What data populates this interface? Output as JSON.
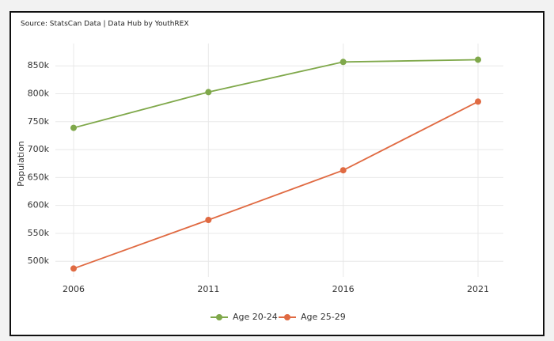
{
  "chart_data": {
    "type": "line",
    "source": "Source: StatsCan Data | Data Hub by YouthREX",
    "y_label": "Population",
    "categories": [
      "2006",
      "2011",
      "2016",
      "2021"
    ],
    "series": [
      {
        "name": "Age 20-24",
        "color": "#7fa84a",
        "values": [
          739000,
          803000,
          857000,
          861000
        ]
      },
      {
        "name": "Age 25-29",
        "color": "#e06a42",
        "values": [
          487000,
          574000,
          663000,
          786000
        ]
      }
    ],
    "ylim": [
      472000,
      890000
    ],
    "yticks": [
      {
        "value": 500000,
        "label": "500k"
      },
      {
        "value": 550000,
        "label": "550k"
      },
      {
        "value": 600000,
        "label": "600k"
      },
      {
        "value": 650000,
        "label": "650k"
      },
      {
        "value": 700000,
        "label": "700k"
      },
      {
        "value": 750000,
        "label": "750k"
      },
      {
        "value": 800000,
        "label": "800k"
      },
      {
        "value": 850000,
        "label": "850k"
      }
    ],
    "grid": true
  }
}
